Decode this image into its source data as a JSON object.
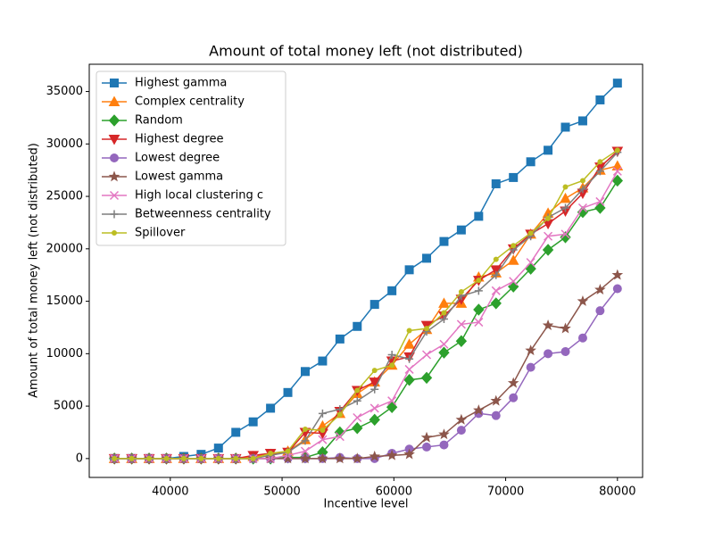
{
  "chart_data": {
    "type": "line",
    "title": "Amount of total money left (not distributed)",
    "xlabel": "Incentive level",
    "ylabel": "Amount of total money left (not distributed)",
    "x": [
      35000,
      36552,
      38103,
      39655,
      41207,
      42759,
      44310,
      45862,
      47414,
      48966,
      50517,
      52069,
      53621,
      55172,
      56724,
      58276,
      59828,
      61379,
      62931,
      64483,
      66034,
      67586,
      69138,
      70690,
      72241,
      73793,
      75345,
      76897,
      78448,
      80000
    ],
    "series": [
      {
        "name": "Highest gamma",
        "color": "#1f77b4",
        "marker": "square",
        "values": [
          0,
          0,
          0,
          0,
          200,
          400,
          1000,
          2500,
          3500,
          4800,
          6300,
          8300,
          9300,
          11400,
          12600,
          14700,
          16000,
          18000,
          19100,
          20700,
          21800,
          23100,
          26200,
          26800,
          28300,
          29400,
          31600,
          32200,
          34200,
          35800
        ]
      },
      {
        "name": "Complex centrality",
        "color": "#ff7f0e",
        "marker": "triangle-up",
        "values": [
          0,
          0,
          0,
          0,
          0,
          0,
          0,
          0,
          200,
          400,
          700,
          1800,
          3100,
          4300,
          6200,
          7300,
          8900,
          10900,
          12300,
          14800,
          14800,
          17300,
          17700,
          18900,
          21400,
          23400,
          24800,
          25800,
          27500,
          27900
        ]
      },
      {
        "name": "Random",
        "color": "#2ca02c",
        "marker": "diamond",
        "values": [
          0,
          0,
          0,
          0,
          0,
          0,
          0,
          0,
          0,
          0,
          100,
          100,
          600,
          2500,
          2900,
          3700,
          4900,
          7500,
          7700,
          10100,
          11200,
          14200,
          14800,
          16400,
          18100,
          19900,
          21100,
          23500,
          23900,
          26500
        ]
      },
      {
        "name": "Highest degree",
        "color": "#d62728",
        "marker": "triangle-down",
        "values": [
          0,
          0,
          0,
          0,
          0,
          0,
          0,
          0,
          300,
          500,
          600,
          2500,
          2400,
          4500,
          6500,
          7300,
          9300,
          9700,
          12700,
          13600,
          15200,
          17000,
          18000,
          20000,
          21400,
          22400,
          23600,
          25300,
          27800,
          29300
        ]
      },
      {
        "name": "Lowest degree",
        "color": "#9467bd",
        "marker": "circle",
        "values": [
          0,
          0,
          0,
          0,
          0,
          0,
          0,
          0,
          0,
          0,
          0,
          0,
          0,
          100,
          0,
          0,
          500,
          900,
          1100,
          1300,
          2700,
          4300,
          4100,
          5800,
          8700,
          10000,
          10200,
          11500,
          14100,
          16200
        ]
      },
      {
        "name": "Lowest gamma",
        "color": "#8c564b",
        "marker": "star",
        "values": [
          0,
          0,
          0,
          0,
          0,
          0,
          0,
          0,
          0,
          0,
          0,
          0,
          0,
          0,
          0,
          200,
          300,
          400,
          2000,
          2300,
          3700,
          4600,
          5500,
          7200,
          10300,
          12700,
          12400,
          15000,
          16100,
          17500
        ]
      },
      {
        "name": "High local clustering c",
        "color": "#e377c2",
        "marker": "x",
        "values": [
          0,
          0,
          0,
          0,
          0,
          0,
          0,
          0,
          0,
          0,
          300,
          700,
          1800,
          2100,
          3900,
          4800,
          5500,
          8500,
          9900,
          10900,
          12800,
          13000,
          16000,
          16900,
          18700,
          21200,
          21400,
          23900,
          24500,
          27400
        ]
      },
      {
        "name": "Betweenness centrality",
        "color": "#7f7f7f",
        "marker": "plus",
        "values": [
          0,
          0,
          0,
          0,
          0,
          0,
          0,
          0,
          0,
          300,
          600,
          1700,
          4300,
          4700,
          5500,
          6600,
          9900,
          9500,
          12100,
          13300,
          15500,
          16000,
          17500,
          19900,
          21200,
          23000,
          23900,
          25700,
          27400,
          29200
        ]
      },
      {
        "name": "Spillover",
        "color": "#bcbd22",
        "marker": "point",
        "values": [
          0,
          0,
          0,
          0,
          0,
          0,
          0,
          0,
          0,
          500,
          700,
          2800,
          2700,
          4200,
          6500,
          8400,
          8900,
          12200,
          12400,
          13900,
          15900,
          17000,
          19000,
          20300,
          21500,
          22900,
          25900,
          26500,
          28300,
          29400
        ]
      }
    ],
    "xlim": [
      32750,
      82250
    ],
    "ylim": [
      -1800,
      37600
    ],
    "xticks": [
      40000,
      50000,
      60000,
      70000,
      80000
    ],
    "yticks": [
      0,
      5000,
      10000,
      15000,
      20000,
      25000,
      30000,
      35000
    ],
    "legend": "upper left"
  }
}
